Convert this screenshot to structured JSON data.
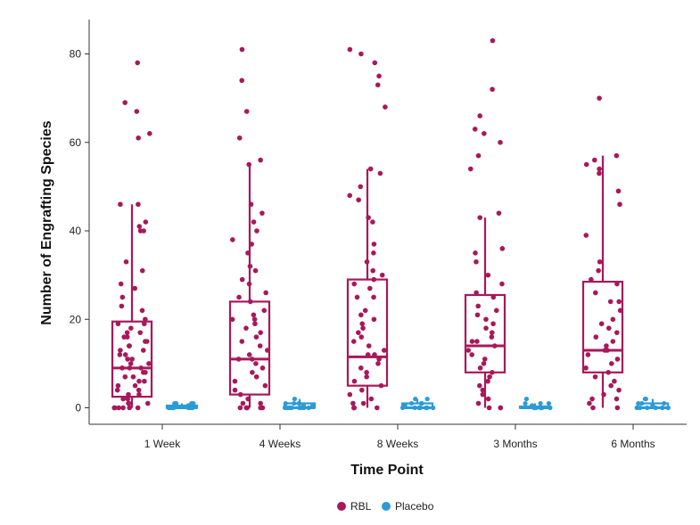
{
  "chart_data": {
    "type": "box",
    "xlabel": "Time Point",
    "ylabel": "Number of Engrafting Species",
    "categories": [
      "1 Week",
      "4 Weeks",
      "8 Weeks",
      "3 Months",
      "6 Months"
    ],
    "ylim": [
      0,
      87
    ],
    "yticks": [
      0,
      20,
      40,
      60,
      80
    ],
    "grid": false,
    "legend_position": "bottom",
    "series": [
      {
        "name": "RBL",
        "color": "#a8185a",
        "boxes": [
          {
            "q1": 2.5,
            "median": 9,
            "q3": 19.5,
            "whisker_low": 0,
            "whisker_high": 46
          },
          {
            "q1": 3,
            "median": 11,
            "q3": 24,
            "whisker_low": 0,
            "whisker_high": 55
          },
          {
            "q1": 5,
            "median": 11.5,
            "q3": 29,
            "whisker_low": 0,
            "whisker_high": 54
          },
          {
            "q1": 8,
            "median": 14,
            "q3": 25.5,
            "whisker_low": 0,
            "whisker_high": 43
          },
          {
            "q1": 8,
            "median": 13,
            "q3": 28.5,
            "whisker_low": 0,
            "whisker_high": 57
          }
        ],
        "points": [
          [
            78,
            69,
            67,
            62,
            61,
            46,
            46,
            42,
            41,
            40,
            40,
            33,
            31,
            28,
            27,
            25,
            23,
            22,
            20,
            19,
            19,
            18,
            17,
            17,
            16,
            16,
            15,
            15,
            14,
            14,
            13,
            13,
            12,
            12,
            11,
            11,
            10,
            10,
            9,
            9,
            9,
            8,
            8,
            7,
            7,
            6,
            6,
            5,
            5,
            4,
            4,
            3,
            3,
            2,
            2,
            1,
            1,
            1,
            0,
            0,
            0,
            0,
            0,
            0
          ],
          [
            81,
            74,
            67,
            61,
            56,
            55,
            46,
            44,
            42,
            40,
            38,
            37,
            35,
            32,
            31,
            29,
            28,
            26,
            25,
            24,
            22,
            21,
            20,
            20,
            19,
            18,
            17,
            16,
            15,
            14,
            13,
            12,
            11,
            11,
            10,
            9,
            8,
            7,
            6,
            5,
            4,
            3,
            2,
            1,
            1,
            0,
            0,
            0,
            0,
            0
          ],
          [
            81,
            80,
            78,
            75,
            73,
            68,
            54,
            53,
            50,
            48,
            47,
            43,
            42,
            37,
            35,
            33,
            31,
            30,
            29,
            28,
            27,
            25,
            25,
            22,
            21,
            20,
            19,
            18,
            17,
            16,
            15,
            14,
            13,
            12,
            12,
            11,
            10,
            9,
            8,
            7,
            6,
            5,
            4,
            3,
            2,
            1,
            1,
            0,
            0,
            0,
            0
          ],
          [
            83,
            72,
            66,
            63,
            62,
            60,
            57,
            54,
            44,
            43,
            36,
            35,
            33,
            30,
            28,
            26,
            25,
            23,
            22,
            21,
            20,
            19,
            18,
            17,
            16,
            15,
            15,
            14,
            13,
            12,
            11,
            10,
            9,
            8,
            7,
            6,
            5,
            4,
            3,
            2,
            1,
            0,
            0,
            0
          ],
          [
            70,
            57,
            56,
            55,
            54,
            53,
            49,
            46,
            39,
            33,
            31,
            29,
            28,
            26,
            24,
            24,
            22,
            20,
            19,
            18,
            17,
            16,
            15,
            14,
            13,
            13,
            12,
            11,
            10,
            9,
            8,
            7,
            6,
            5,
            4,
            3,
            2,
            2,
            1,
            0,
            0
          ]
        ]
      },
      {
        "name": "Placebo",
        "color": "#2b9bd6",
        "boxes": [
          {
            "q1": 0,
            "median": 0,
            "q3": 0.5,
            "whisker_low": 0,
            "whisker_high": 1
          },
          {
            "q1": 0,
            "median": 0,
            "q3": 1,
            "whisker_low": 0,
            "whisker_high": 2
          },
          {
            "q1": 0,
            "median": 0,
            "q3": 1,
            "whisker_low": 0,
            "whisker_high": 2
          },
          {
            "q1": 0,
            "median": 0,
            "q3": 0.3,
            "whisker_low": 0,
            "whisker_high": 1
          },
          {
            "q1": 0,
            "median": 0,
            "q3": 1,
            "whisker_low": 0,
            "whisker_high": 2
          }
        ],
        "points": [
          [
            1,
            1,
            1,
            1,
            0.5,
            0.5,
            0,
            0,
            0,
            0,
            0,
            0,
            0,
            0,
            0
          ],
          [
            2,
            1,
            1,
            1,
            1,
            0.5,
            0.5,
            0,
            0,
            0,
            0,
            0,
            0,
            0,
            0
          ],
          [
            2,
            2,
            1,
            1,
            1,
            0.5,
            0,
            0,
            0,
            0,
            0,
            0,
            0,
            0
          ],
          [
            2,
            1,
            1,
            1,
            0.5,
            0,
            0,
            0,
            0,
            0,
            0,
            0,
            0,
            0
          ],
          [
            2,
            2,
            1,
            1,
            1,
            0.5,
            0,
            0,
            0,
            0,
            0,
            0,
            0,
            0
          ]
        ]
      }
    ]
  }
}
